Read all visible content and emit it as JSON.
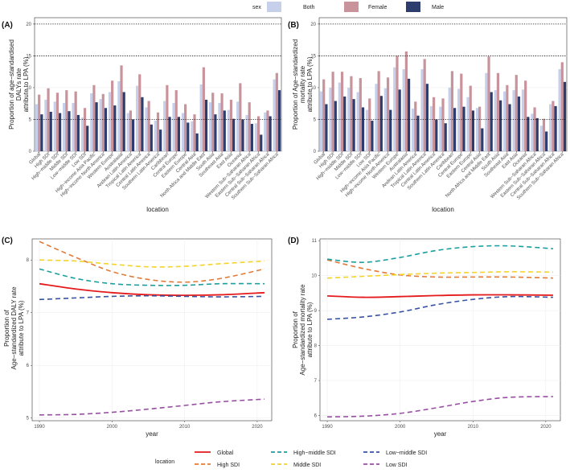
{
  "figure_legend": {
    "sex_title": "sex",
    "sex_items": [
      {
        "label": "Both",
        "color": "#c6d0ea"
      },
      {
        "label": "Female",
        "color": "#c9939b"
      },
      {
        "label": "Male",
        "color": "#2c3d6e"
      }
    ],
    "location_title": "location",
    "location_items": [
      {
        "label": "Global",
        "color": "#e41a1c",
        "dash": "solid"
      },
      {
        "label": "High−middle SDI",
        "color": "#1b9e9e",
        "dash": "dash"
      },
      {
        "label": "Low−middle SDI",
        "color": "#3953a4",
        "dash": "dash"
      },
      {
        "label": "High SDI",
        "color": "#e07b39",
        "dash": "dash"
      },
      {
        "label": "Middle SDI",
        "color": "#f5d327",
        "dash": "dash"
      },
      {
        "label": "Low SDI",
        "color": "#984ea3",
        "dash": "dash"
      }
    ]
  },
  "chart_data": [
    {
      "panel": "(A)",
      "type": "bar",
      "ylabel": "Proportion of age−standardised DALYs rate attribute to LPA (%)",
      "ylabel_lines": [
        "Proportion of age−standardised",
        "DALYs rate",
        "attribute to LPA (%)"
      ],
      "xlabel": "location",
      "ylim": [
        0,
        21
      ],
      "yticks": [
        0,
        5,
        10,
        15,
        20
      ],
      "dotted_lines": [
        5,
        15,
        20
      ],
      "categories": [
        "Global",
        "High SDI",
        "High−middle SDI",
        "Middle SDI",
        "Low−middle SDI",
        "Low SDI",
        "High−income Asia Pacific",
        "High−income North America",
        "Western Europe",
        "Australasia",
        "Andean Latin America",
        "Tropical Latin America",
        "Central Latin America",
        "Southern Latin America",
        "Caribbean",
        "Central Europe",
        "Eastern Europe",
        "Central Asia",
        "North Africa and Middle East",
        "South Asia",
        "Southeast Asia",
        "East Asia",
        "Oceania",
        "Western Sub−Saharan Africa",
        "Eastern Sub−Saharan Africa",
        "Central Sub−Saharan Africa",
        "Southern Sub−Saharan Africa"
      ],
      "series": [
        {
          "name": "Both",
          "values": [
            7.4,
            8.1,
            7.8,
            7.6,
            7.6,
            5.3,
            9.1,
            8.2,
            9.3,
            11.0,
            6.0,
            10.3,
            6.9,
            4.8,
            7.9,
            7.6,
            6.0,
            4.7,
            10.5,
            7.7,
            7.6,
            6.5,
            7.8,
            5.7,
            4.4,
            6.1,
            11.3
          ]
        },
        {
          "name": "Female",
          "values": [
            8.9,
            9.9,
            9.2,
            9.6,
            9.4,
            6.8,
            10.4,
            9.0,
            11.1,
            13.5,
            6.4,
            12.1,
            7.9,
            6.1,
            10.4,
            9.6,
            7.4,
            5.8,
            13.2,
            9.2,
            9.1,
            8.1,
            10.7,
            7.7,
            5.5,
            6.4,
            12.3
          ]
        },
        {
          "name": "Male",
          "values": [
            5.8,
            6.2,
            6.0,
            6.3,
            5.7,
            4.0,
            7.7,
            6.8,
            7.2,
            9.3,
            5.0,
            8.5,
            4.2,
            3.4,
            5.4,
            5.4,
            4.5,
            2.8,
            8.1,
            5.8,
            6.4,
            5.1,
            5.0,
            4.3,
            2.6,
            5.5,
            9.6
          ]
        }
      ]
    },
    {
      "panel": "(B)",
      "type": "bar",
      "ylabel": "Proportion of Age−standardized mortality rate attribute to LPA (%)",
      "ylabel_lines": [
        "Proportion of Age−standardized",
        "mortality rate",
        "attribute to LPA (%)"
      ],
      "xlabel": "location",
      "ylim": [
        0,
        21
      ],
      "yticks": [
        0,
        5,
        10,
        15,
        20
      ],
      "dotted_lines": [
        5,
        15,
        20
      ],
      "categories": [
        "Global",
        "High SDI",
        "High−middle SDI",
        "Middle SDI",
        "Low−middle SDI",
        "Low SDI",
        "High−income Asia Pacific",
        "High−income North America",
        "Western Europe",
        "Australasia",
        "Andean Latin America",
        "Tropical Latin America",
        "Central Latin America",
        "Southern Latin America",
        "Caribbean",
        "Central Europe",
        "Eastern Europe",
        "Central Asia",
        "North Africa and Middle East",
        "South Asia",
        "Southeast Asia",
        "East Asia",
        "Oceania",
        "Western Sub−Saharan Africa",
        "Eastern Sub−Saharan Africa",
        "Central Sub−Saharan Africa",
        "Southern Sub−Saharan Africa"
      ],
      "series": [
        {
          "name": "Both",
          "values": [
            9.4,
            10.0,
            10.8,
            10.0,
            9.3,
            6.5,
            10.6,
            9.9,
            13.2,
            12.9,
            6.7,
            12.9,
            7.1,
            7.0,
            10.0,
            9.8,
            8.5,
            6.8,
            12.3,
            9.6,
            9.4,
            9.6,
            9.7,
            5.9,
            4.0,
            7.4,
            12.9
          ]
        },
        {
          "name": "Female",
          "values": [
            11.3,
            12.5,
            12.5,
            11.8,
            11.5,
            8.3,
            12.6,
            11.6,
            15.0,
            15.7,
            7.8,
            14.5,
            8.5,
            8.3,
            12.6,
            12.2,
            10.3,
            7.0,
            14.9,
            12.3,
            10.4,
            12.0,
            11.1,
            6.9,
            5.1,
            7.9,
            14.0
          ]
        },
        {
          "name": "Male",
          "values": [
            7.4,
            7.9,
            8.6,
            8.2,
            6.9,
            4.8,
            8.7,
            6.5,
            9.7,
            11.4,
            5.6,
            10.6,
            5.0,
            4.4,
            6.8,
            7.0,
            6.4,
            3.6,
            9.3,
            8.0,
            7.4,
            8.6,
            5.4,
            5.2,
            3.1,
            7.1,
            10.9
          ]
        }
      ]
    },
    {
      "panel": "(C)",
      "type": "line",
      "xlabel": "year",
      "ylabel": "Proportion of Age−standardized DALY rate attribute to LPA (%)",
      "ylabel_lines": [
        "Proportion of",
        "Age−standardized DALY rate",
        "attribute to LPA (%)"
      ],
      "xlim": [
        1989,
        2022
      ],
      "ylim": [
        4.95,
        8.4
      ],
      "xticks": [
        1990,
        2000,
        2010,
        2020
      ],
      "yticks": [
        5,
        6,
        7,
        8
      ],
      "x": [
        1990,
        1995,
        2000,
        2005,
        2010,
        2015,
        2021
      ],
      "series": [
        {
          "name": "Global",
          "values": [
            7.55,
            7.45,
            7.38,
            7.34,
            7.33,
            7.34,
            7.38
          ]
        },
        {
          "name": "High SDI",
          "values": [
            8.35,
            8.05,
            7.78,
            7.63,
            7.58,
            7.65,
            7.83
          ]
        },
        {
          "name": "High−middle SDI",
          "values": [
            7.83,
            7.65,
            7.55,
            7.52,
            7.52,
            7.55,
            7.55
          ]
        },
        {
          "name": "Middle SDI",
          "values": [
            8.0,
            7.98,
            7.92,
            7.87,
            7.88,
            7.93,
            7.98
          ]
        },
        {
          "name": "Low−middle SDI",
          "values": [
            7.25,
            7.28,
            7.31,
            7.32,
            7.31,
            7.3,
            7.31
          ]
        },
        {
          "name": "Low SDI",
          "values": [
            5.06,
            5.07,
            5.11,
            5.17,
            5.24,
            5.31,
            5.36
          ]
        }
      ]
    },
    {
      "panel": "(D)",
      "type": "line",
      "xlabel": "year",
      "ylabel": "Proportion of Age−standardized mortality rate attribute to LPA (%)",
      "ylabel_lines": [
        "Proportion of",
        "Age−standardized mortality rate",
        "attribute to LPA (%)"
      ],
      "xlim": [
        1989,
        2022
      ],
      "ylim": [
        5.85,
        11.05
      ],
      "xticks": [
        1990,
        2000,
        2010,
        2020
      ],
      "yticks": [
        6,
        7,
        8,
        9,
        10,
        11
      ],
      "x": [
        1990,
        1995,
        2000,
        2005,
        2010,
        2015,
        2021
      ],
      "series": [
        {
          "name": "Global",
          "values": [
            9.42,
            9.38,
            9.4,
            9.43,
            9.45,
            9.45,
            9.44
          ]
        },
        {
          "name": "High SDI",
          "values": [
            10.45,
            10.2,
            10.02,
            9.96,
            9.96,
            9.96,
            9.93
          ]
        },
        {
          "name": "High−middle SDI",
          "values": [
            10.47,
            10.38,
            10.52,
            10.72,
            10.83,
            10.85,
            10.77
          ]
        },
        {
          "name": "Middle SDI",
          "values": [
            9.93,
            9.98,
            10.03,
            10.07,
            10.09,
            10.11,
            10.1
          ]
        },
        {
          "name": "Low−middle SDI",
          "values": [
            8.75,
            8.82,
            8.96,
            9.17,
            9.32,
            9.4,
            9.38
          ]
        },
        {
          "name": "Low SDI",
          "values": [
            5.96,
            5.98,
            6.06,
            6.22,
            6.4,
            6.52,
            6.54
          ]
        }
      ]
    }
  ]
}
